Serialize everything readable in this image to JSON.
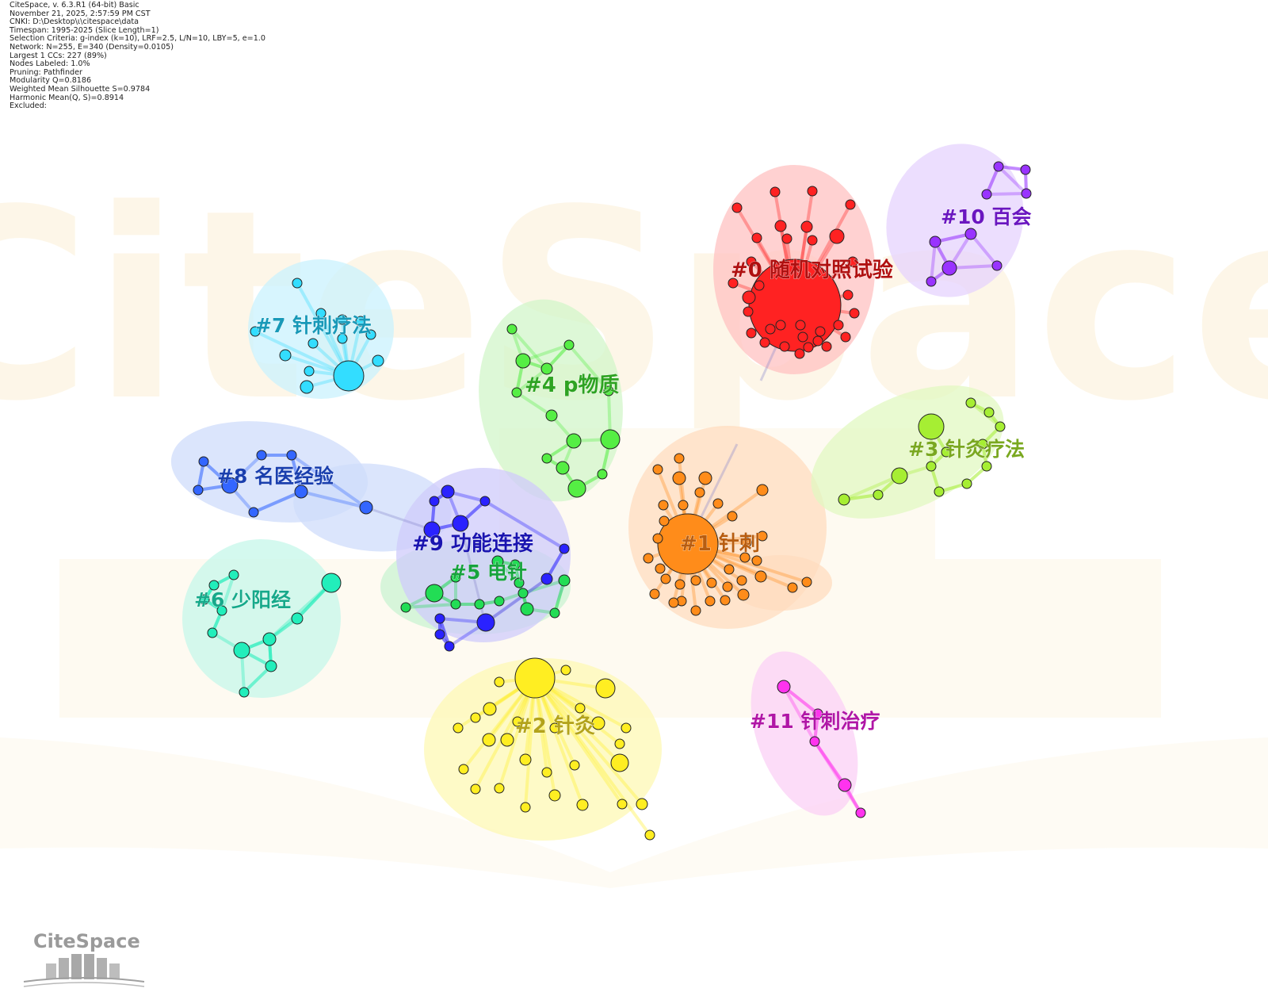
{
  "header": {
    "lines": [
      "CiteSpace, v. 6.3.R1 (64-bit) Basic",
      "November 21, 2025, 2:57:59 PM CST",
      "CNKI: D:\\Desktop\\ι\\citespace\\data",
      "Timespan: 1995-2025 (Slice Length=1)",
      "Selection Criteria: g-index (k=10), LRF=2.5, L/N=10, LBY=5, e=1.0",
      "Network: N=255, E=340 (Density=0.0105)",
      "Largest 1 CCs: 227 (89%)",
      "Nodes Labeled: 1.0%",
      "Pruning: Pathfinder",
      "Modularity Q=0.8186",
      "Weighted Mean Silhouette S=0.9784",
      "Harmonic Mean(Q, S)=0.8914",
      "Excluded:"
    ]
  },
  "watermark": {
    "text": "CiteSpace",
    "color": "#fdf6e3"
  },
  "logo": {
    "text": "CiteSpace"
  },
  "clusters": [
    {
      "id": "0",
      "label": "#0 随机对照试验",
      "color": "#ff2222",
      "label_color": "#b01010",
      "hull_color": "#ffc2c2"
    },
    {
      "id": "1",
      "label": "#1 针刺",
      "color": "#ff8c1a",
      "label_color": "#b85d10",
      "hull_color": "#ffdcbf"
    },
    {
      "id": "2",
      "label": "#2 针灸",
      "color": "#ffee22",
      "label_color": "#b3a31a",
      "hull_color": "#fdf8b4"
    },
    {
      "id": "3",
      "label": "#3 针灸疗法",
      "color": "#a6ee33",
      "label_color": "#7aa820",
      "hull_color": "#e1f8c2"
    },
    {
      "id": "4",
      "label": "#4 p物质",
      "color": "#55ee44",
      "label_color": "#2ea322",
      "hull_color": "#d2f6ca"
    },
    {
      "id": "5",
      "label": "#5 电针",
      "color": "#22dd55",
      "label_color": "#17a33d",
      "hull_color": "#c9f3d2"
    },
    {
      "id": "6",
      "label": "#6 少阳经",
      "color": "#22eebb",
      "label_color": "#16a98a",
      "hull_color": "#c6f7e9"
    },
    {
      "id": "7",
      "label": "#7 针刺疗法",
      "color": "#33ddff",
      "label_color": "#1899b8",
      "hull_color": "#caf2fd"
    },
    {
      "id": "8",
      "label": "#8 名医经验",
      "color": "#3366ff",
      "label_color": "#1a3fae",
      "hull_color": "#cfdcfb"
    },
    {
      "id": "9",
      "label": "#9 功能连接",
      "color": "#2a22ff",
      "label_color": "#1a14b0",
      "hull_color": "#cfcbfb"
    },
    {
      "id": "10",
      "label": "#10 百会",
      "color": "#9933ff",
      "label_color": "#6a16c0",
      "hull_color": "#e6d3fd"
    },
    {
      "id": "11",
      "label": "#11 针刺治疗",
      "color": "#ff33ee",
      "label_color": "#b016a6",
      "hull_color": "#fbd0f6"
    }
  ]
}
